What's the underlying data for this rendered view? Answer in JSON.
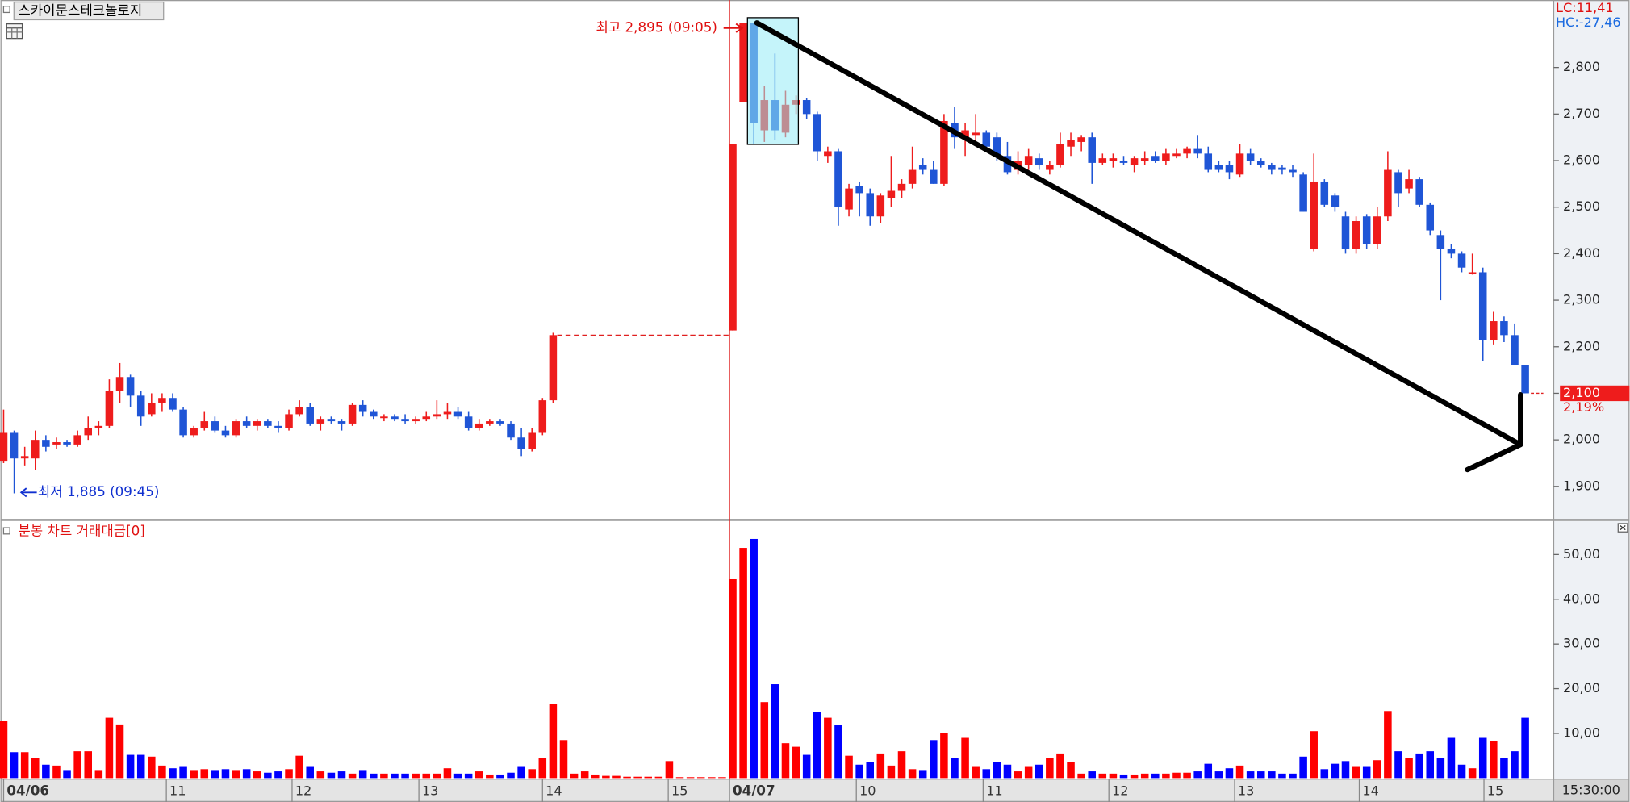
{
  "chart_data": {
    "type": "candlestick",
    "title": "스카이문스테크놀로지",
    "volume_title": "분봉 차트 거래대금[0]",
    "up_color": "#ee1c1c",
    "down_color": "#1f55d6",
    "volume_up_color": "#ff0000",
    "volume_down_color": "#0000ff",
    "grid": false,
    "xlim": [
      -0.3,
      146.7
    ],
    "xticks": [
      {
        "value": 0,
        "label": "04/06"
      },
      {
        "value": 15.4,
        "label": "11"
      },
      {
        "value": 27.3,
        "label": "12"
      },
      {
        "value": 39.3,
        "label": "13"
      },
      {
        "value": 51.0,
        "label": "14"
      },
      {
        "value": 62.9,
        "label": "15"
      },
      {
        "value": 68.7,
        "label": "04/07"
      },
      {
        "value": 80.7,
        "label": "10"
      },
      {
        "value": 92.7,
        "label": "11"
      },
      {
        "value": 104.6,
        "label": "12"
      },
      {
        "value": 116.5,
        "label": "13"
      },
      {
        "value": 128.3,
        "label": "14"
      },
      {
        "value": 140.1,
        "label": "15"
      }
    ],
    "ylim": [
      1829,
      2945
    ],
    "yticks": [
      {
        "value": 1900,
        "label": "1,900"
      },
      {
        "value": 2000,
        "label": "2,000"
      },
      {
        "value": 2100,
        "label": "2,100"
      },
      {
        "value": 2200,
        "label": "2,200"
      },
      {
        "value": 2300,
        "label": "2,300"
      },
      {
        "value": 2400,
        "label": "2,400"
      },
      {
        "value": 2500,
        "label": "2,500"
      },
      {
        "value": 2600,
        "label": "2,600"
      },
      {
        "value": 2700,
        "label": "2,700"
      },
      {
        "value": 2800,
        "label": "2,800"
      }
    ],
    "volume_ylim": [
      0,
      57.4
    ],
    "volume_yticks": [
      {
        "value": 10,
        "label": "10,00"
      },
      {
        "value": 20,
        "label": "20,00"
      },
      {
        "value": 30,
        "label": "30,00"
      },
      {
        "value": 40,
        "label": "40,00"
      },
      {
        "value": 50,
        "label": "50,00"
      }
    ],
    "open": [
      1955,
      2015,
      1960,
      1960,
      2000,
      1990,
      1995,
      1990,
      2010,
      2025,
      2030,
      2105,
      2135,
      2095,
      2055,
      2080,
      2090,
      2065,
      2010,
      2025,
      2040,
      2020,
      2010,
      2040,
      2030,
      2040,
      2030,
      2025,
      2055,
      2070,
      2035,
      2045,
      2040,
      2035,
      2075,
      2060,
      2050,
      2050,
      2045,
      2040,
      2045,
      2050,
      2055,
      2060,
      2050,
      2025,
      2035,
      2040,
      2035,
      2005,
      1980,
      2015,
      2085,
      null,
      null,
      null,
      null,
      null,
      null,
      null,
      null,
      null,
      null,
      null,
      null,
      null,
      null,
      null,
      null,
      2235,
      2725,
      2895,
      2665,
      2730,
      2660,
      2720,
      2730,
      2700,
      2610,
      2620,
      2495,
      2545,
      2530,
      2480,
      2520,
      2535,
      2550,
      2590,
      2580,
      2550,
      2680,
      2650,
      2655,
      2660,
      2650,
      2610,
      2580,
      2590,
      2605,
      2580,
      2590,
      2630,
      2640,
      2650,
      2595,
      2600,
      2600,
      2590,
      2600,
      2610,
      2600,
      2610,
      2615,
      2625,
      2615,
      2590,
      2590,
      2570,
      2615,
      2600,
      2590,
      2585,
      2580,
      2570,
      2410,
      2555,
      2525,
      2480,
      2410,
      2480,
      2420,
      2480,
      2575,
      2540,
      2560,
      2505,
      2440,
      2410,
      2400,
      2360,
      2360,
      2215,
      2255,
      2225,
      2160
    ],
    "high": [
      2065,
      2020,
      1985,
      2020,
      2010,
      2005,
      2000,
      2020,
      2050,
      2040,
      2130,
      2165,
      2140,
      2105,
      2100,
      2100,
      2100,
      2070,
      2030,
      2060,
      2050,
      2030,
      2045,
      2050,
      2045,
      2045,
      2040,
      2065,
      2085,
      2080,
      2050,
      2050,
      2045,
      2080,
      2085,
      2065,
      2055,
      2055,
      2055,
      2050,
      2060,
      2085,
      2080,
      2070,
      2060,
      2045,
      2045,
      2045,
      2040,
      2025,
      2025,
      2090,
      2230,
      null,
      null,
      null,
      null,
      null,
      null,
      null,
      null,
      null,
      null,
      null,
      null,
      null,
      null,
      null,
      null,
      2635,
      2895,
      2895,
      2760,
      2830,
      2750,
      2740,
      2735,
      2705,
      2630,
      2625,
      2550,
      2555,
      2540,
      2530,
      2610,
      2560,
      2630,
      2605,
      2600,
      2700,
      2715,
      2680,
      2700,
      2665,
      2660,
      2640,
      2620,
      2625,
      2615,
      2600,
      2660,
      2660,
      2655,
      2660,
      2615,
      2615,
      2610,
      2610,
      2620,
      2620,
      2625,
      2625,
      2630,
      2655,
      2630,
      2600,
      2600,
      2635,
      2625,
      2605,
      2595,
      2590,
      2590,
      2575,
      2615,
      2560,
      2530,
      2490,
      2480,
      2485,
      2500,
      2620,
      2580,
      2580,
      2565,
      2510,
      2450,
      2420,
      2405,
      2400,
      2370,
      2275,
      2265,
      2250,
      2160
    ],
    "low": [
      1950,
      1885,
      1945,
      1935,
      1975,
      1980,
      1985,
      1985,
      2000,
      2010,
      2025,
      2080,
      2070,
      2030,
      2050,
      2060,
      2060,
      2005,
      2005,
      2020,
      2015,
      2005,
      2005,
      2025,
      2020,
      2025,
      2015,
      2020,
      2050,
      2030,
      2020,
      2035,
      2020,
      2030,
      2050,
      2045,
      2040,
      2040,
      2035,
      2035,
      2040,
      2045,
      2045,
      2045,
      2020,
      2020,
      2030,
      2030,
      2000,
      1965,
      1975,
      2010,
      2080,
      null,
      null,
      null,
      null,
      null,
      null,
      null,
      null,
      null,
      null,
      null,
      null,
      null,
      null,
      null,
      null,
      2235,
      2725,
      2635,
      2640,
      2645,
      2650,
      2700,
      2690,
      2600,
      2595,
      2460,
      2480,
      2480,
      2460,
      2465,
      2500,
      2520,
      2540,
      2570,
      2550,
      2545,
      2625,
      2610,
      2640,
      2620,
      2600,
      2570,
      2570,
      2580,
      2580,
      2570,
      2585,
      2610,
      2620,
      2550,
      2590,
      2585,
      2590,
      2575,
      2590,
      2595,
      2590,
      2605,
      2605,
      2605,
      2575,
      2575,
      2560,
      2565,
      2590,
      2585,
      2570,
      2570,
      2565,
      2490,
      2405,
      2500,
      2490,
      2400,
      2400,
      2410,
      2410,
      2470,
      2500,
      2530,
      2500,
      2440,
      2300,
      2390,
      2360,
      2355,
      2170,
      2205,
      2210,
      2160,
      2100
    ],
    "close": [
      2015,
      1960,
      1965,
      2000,
      1985,
      1995,
      1990,
      2010,
      2025,
      2030,
      2105,
      2135,
      2095,
      2050,
      2080,
      2090,
      2065,
      2010,
      2025,
      2040,
      2020,
      2010,
      2040,
      2030,
      2040,
      2030,
      2025,
      2055,
      2070,
      2035,
      2045,
      2040,
      2035,
      2075,
      2060,
      2050,
      2050,
      2045,
      2040,
      2045,
      2050,
      2055,
      2060,
      2050,
      2025,
      2035,
      2040,
      2035,
      2005,
      1980,
      2015,
      2085,
      2225,
      null,
      null,
      null,
      null,
      null,
      null,
      null,
      null,
      null,
      null,
      null,
      null,
      null,
      null,
      null,
      null,
      2635,
      2895,
      2680,
      2730,
      2665,
      2720,
      2730,
      2700,
      2620,
      2620,
      2500,
      2540,
      2530,
      2480,
      2525,
      2535,
      2550,
      2580,
      2580,
      2550,
      2685,
      2650,
      2665,
      2660,
      2630,
      2610,
      2575,
      2600,
      2610,
      2590,
      2590,
      2635,
      2645,
      2650,
      2595,
      2605,
      2605,
      2595,
      2605,
      2605,
      2600,
      2615,
      2615,
      2625,
      2615,
      2580,
      2580,
      2575,
      2615,
      2600,
      2590,
      2580,
      2580,
      2575,
      2490,
      2555,
      2505,
      2500,
      2410,
      2470,
      2420,
      2480,
      2580,
      2530,
      2560,
      2505,
      2450,
      2410,
      2400,
      2370,
      2360,
      2215,
      2255,
      2225,
      2160,
      2100
    ],
    "volume": [
      12.8,
      5.8,
      5.8,
      4.5,
      3,
      2.8,
      1.8,
      6,
      6,
      1.8,
      13.5,
      12,
      5.2,
      5.2,
      4.8,
      2.8,
      2.2,
      2.5,
      1.8,
      2,
      1.8,
      2,
      1.8,
      2,
      1.5,
      1.2,
      1.5,
      2,
      5,
      2.5,
      1.5,
      1.2,
      1.5,
      1,
      1.8,
      1,
      1,
      1,
      1,
      1,
      1,
      1,
      2.2,
      1,
      1,
      1.5,
      0.8,
      0.8,
      1.2,
      2.5,
      2,
      4.5,
      16.5,
      8.5,
      1,
      1.5,
      0.8,
      0.5,
      0.5,
      0.3,
      0.3,
      0.3,
      0.3,
      3.8,
      0.2,
      0.2,
      0.2,
      0.2,
      0.2,
      44.5,
      51.5,
      53.5,
      17,
      21,
      7.8,
      7,
      5.2,
      14.8,
      13.5,
      11.8,
      5,
      3,
      3.5,
      5.5,
      2.8,
      6,
      2,
      1.8,
      8.5,
      10,
      4.5,
      9,
      2.5,
      2,
      3.5,
      3,
      1.5,
      2.5,
      3,
      4.5,
      5.5,
      3.5,
      1,
      1.5,
      1,
      1,
      0.8,
      0.8,
      1,
      1,
      1,
      1.2,
      1.2,
      1.5,
      3.2,
      1.5,
      2.2,
      2.8,
      1.5,
      1.5,
      1.5,
      1,
      1,
      4.8,
      10.5,
      2,
      3.2,
      3.8,
      2.5,
      2.5,
      4,
      15,
      6,
      4.5,
      5.5,
      6,
      4.5,
      9,
      3,
      2.2,
      9,
      8.2,
      4.5,
      6,
      13.5
    ],
    "high_label": "최고 2,895 (09:05)",
    "low_label": "최저 1,885 (09:45)",
    "lc_label": "LC:11,41",
    "hc_label": "HC:-27,46",
    "price_tag": {
      "value": 2100,
      "label": "2,100",
      "change": "2,19%"
    },
    "time_label": "15:30:00"
  }
}
